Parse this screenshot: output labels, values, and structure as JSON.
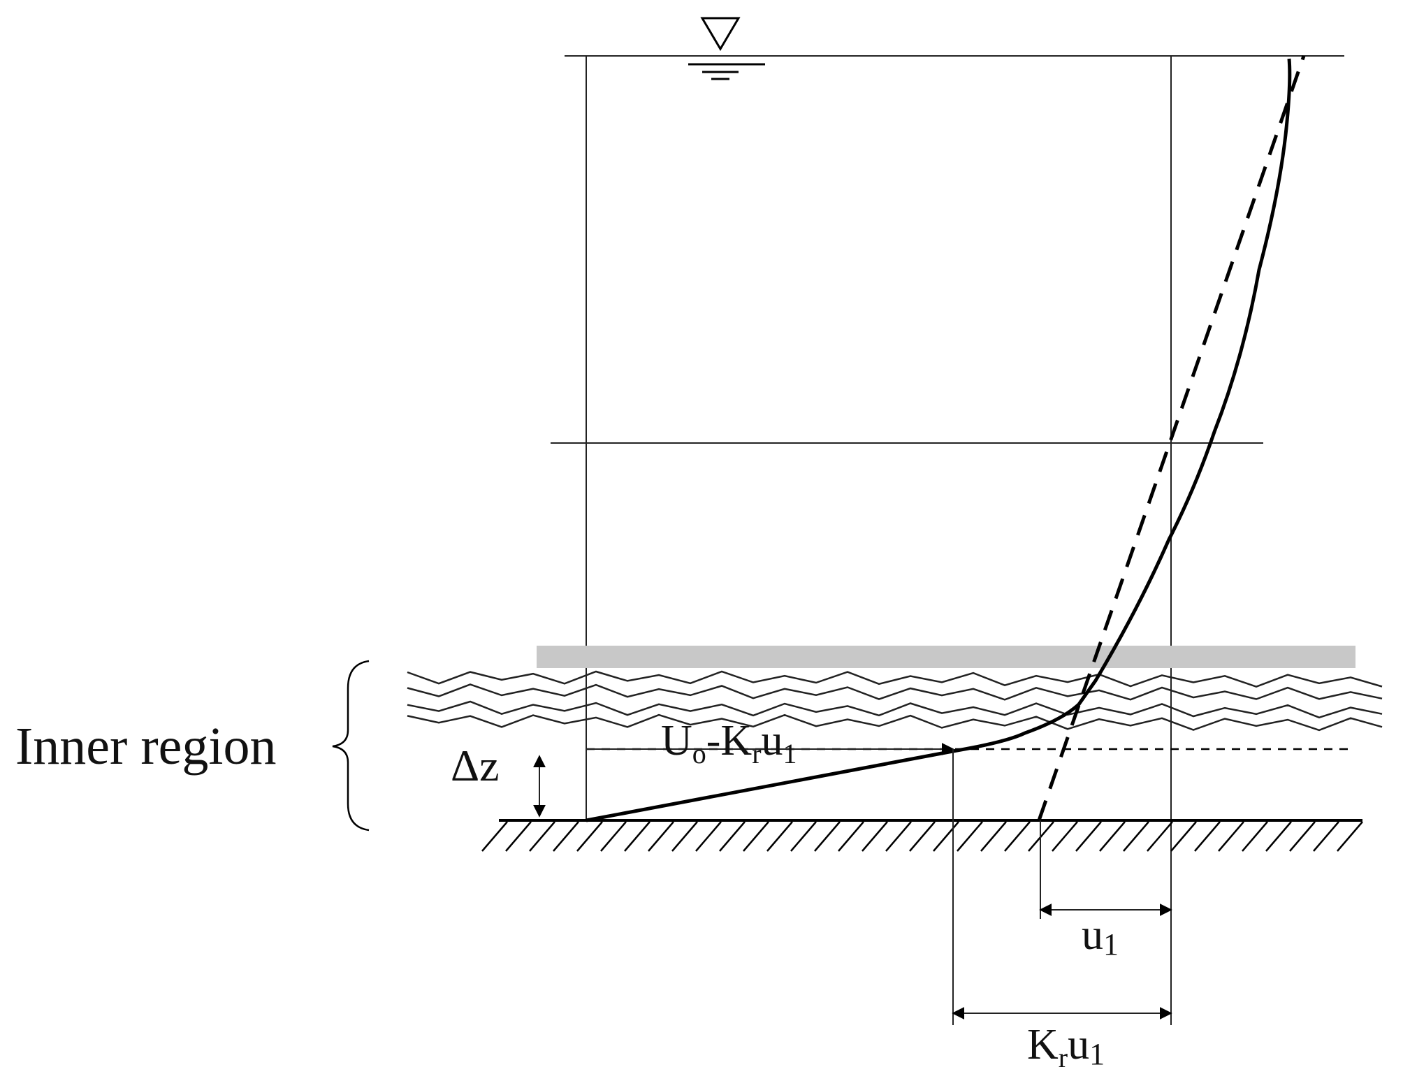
{
  "labels": {
    "inner_region": "Inner region",
    "delta_z": "Δz",
    "velocity_deficit": [
      "U",
      "o",
      "-K",
      "r",
      "u",
      "1"
    ],
    "u1": [
      "u",
      "1"
    ],
    "kr_u1": [
      "K",
      "r",
      "u",
      "1"
    ]
  }
}
